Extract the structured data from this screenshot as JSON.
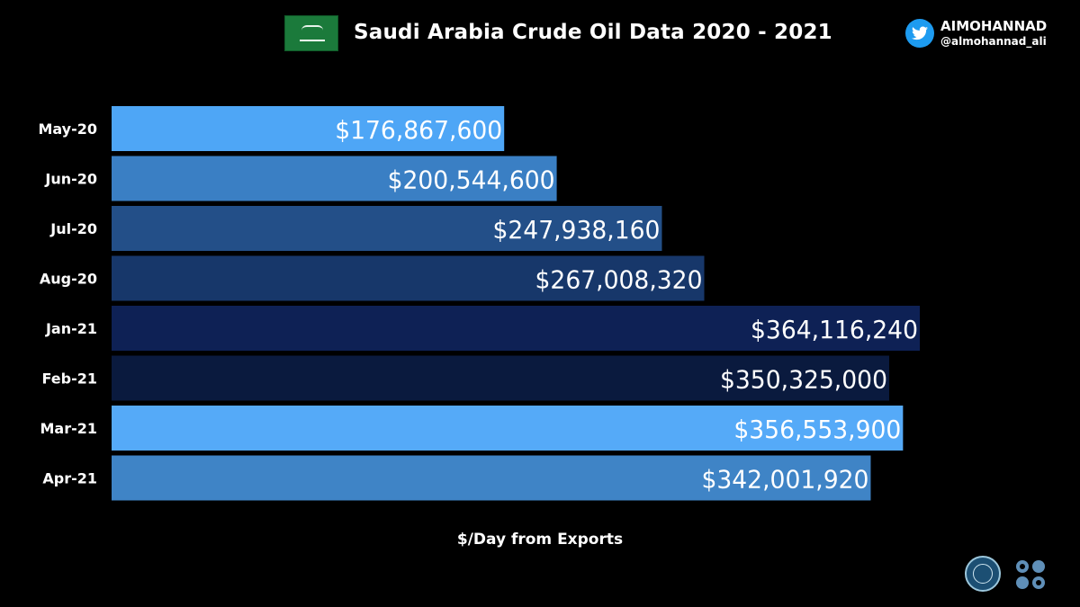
{
  "header": {
    "title": "Saudi Arabia Crude Oil Data 2020 - 2021",
    "handle_name": "AIMOHANNAD",
    "handle_at": "@almohannad_ali"
  },
  "chart_data": {
    "type": "bar",
    "orientation": "horizontal",
    "title": "Saudi Arabia Crude Oil Data 2020 - 2021",
    "xlabel": "$/Day from Exports",
    "ylabel": "",
    "categories": [
      "May-20",
      "Jun-20",
      "Jul-20",
      "Aug-20",
      "Jan-21",
      "Feb-21",
      "Mar-21",
      "Apr-21"
    ],
    "values": [
      176867600,
      200544600,
      247938160,
      267008320,
      364116240,
      350325000,
      356553900,
      342001920
    ],
    "data_labels": [
      "$176,867,600",
      "$200,544,600",
      "$247,938,160",
      "$267,008,320",
      "$364,116,240",
      "$350,325,000",
      "$356,553,900",
      "$342,001,920"
    ],
    "bar_colors": [
      "#4ea6f6",
      "#3a7fc4",
      "#234f88",
      "#17376a",
      "#0e2155",
      "#0a1a3e",
      "#55aaf8",
      "#3f84c6"
    ],
    "xlim": [
      0,
      364116240
    ],
    "grid": false,
    "legend": "none"
  }
}
